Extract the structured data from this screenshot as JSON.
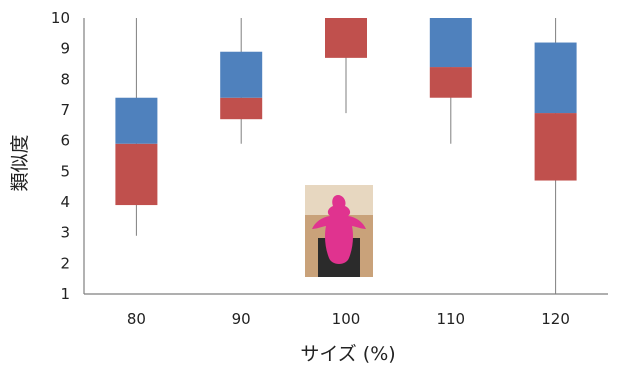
{
  "chart_data": {
    "type": "box",
    "categories": [
      "80",
      "90",
      "100",
      "110",
      "120"
    ],
    "boxes": [
      {
        "category": "80",
        "min": 2.9,
        "q1": 3.9,
        "median": 5.9,
        "q3": 7.4,
        "max": 10.0
      },
      {
        "category": "90",
        "min": 5.9,
        "q1": 6.7,
        "median": 7.4,
        "q3": 8.9,
        "max": 10.0
      },
      {
        "category": "100",
        "min": 6.9,
        "q1": 8.7,
        "median": 10.0,
        "q3": 10.0,
        "max": 10.0
      },
      {
        "category": "110",
        "min": 5.9,
        "q1": 7.4,
        "median": 8.4,
        "q3": 10.0,
        "max": 10.0
      },
      {
        "category": "120",
        "min": 1.0,
        "q1": 4.7,
        "median": 6.9,
        "q3": 9.2,
        "max": 10.0
      }
    ],
    "yticks": [
      "1",
      "2",
      "3",
      "4",
      "5",
      "6",
      "7",
      "8",
      "9",
      "10"
    ],
    "ylim": [
      1,
      10
    ],
    "xlabel": "サイズ (%)",
    "ylabel": "類似度",
    "colors": {
      "lower_box": "#c0504d",
      "upper_box": "#4f81bd",
      "whisker": "#7f7f7f",
      "axis": "#7f7f7f"
    },
    "inset_image": {
      "description": "pink humanoid cushion on chair",
      "main_color": "#e0338f"
    }
  }
}
